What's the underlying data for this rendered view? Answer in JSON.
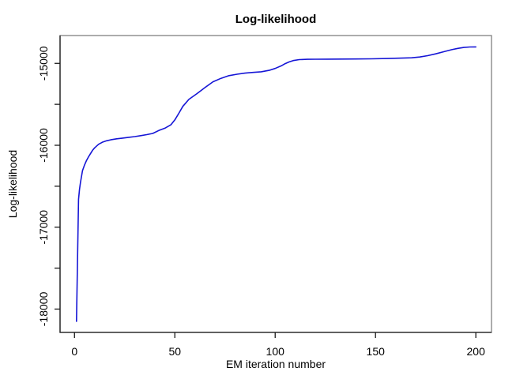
{
  "title": "Log-likelihood",
  "chart_data": {
    "type": "line",
    "title": "Log-likelihood",
    "xlabel": "EM iteration number",
    "ylabel": "Log-likelihood",
    "xlim": [
      -7.2,
      207.8
    ],
    "ylim": [
      -18285,
      -14660
    ],
    "grid": false,
    "legend_position": "none",
    "xticks": [
      {
        "v": 0,
        "label": "0"
      },
      {
        "v": 50,
        "label": "50"
      },
      {
        "v": 100,
        "label": "100"
      },
      {
        "v": 150,
        "label": "150"
      },
      {
        "v": 200,
        "label": "200"
      }
    ],
    "yticks": [
      {
        "v": -18000,
        "label": "-18000"
      },
      {
        "v": -17500,
        "label": ""
      },
      {
        "v": -17000,
        "label": "-17000"
      },
      {
        "v": -16500,
        "label": ""
      },
      {
        "v": -16000,
        "label": "-16000"
      },
      {
        "v": -15500,
        "label": ""
      },
      {
        "v": -15000,
        "label": "-15000"
      }
    ],
    "line_color": "#1515d6",
    "axis_color": "#1a1a1a",
    "box_color": "#808080",
    "series": [
      {
        "name": "log-likelihood",
        "x": [
          1,
          2,
          2.5,
          3,
          4,
          5,
          6,
          7,
          8,
          9,
          10,
          12,
          14,
          16,
          18,
          21,
          24,
          27,
          30,
          33,
          36,
          39,
          42,
          45,
          48,
          50,
          52,
          54,
          57,
          61,
          65,
          69,
          73,
          77,
          81,
          85,
          89,
          93,
          97,
          100,
          103,
          105,
          107,
          109,
          112,
          116,
          120,
          126,
          133,
          140,
          148,
          156,
          163,
          168,
          172,
          176,
          180,
          184,
          188,
          191,
          194,
          197,
          200
        ],
        "y": [
          -18150,
          -16660,
          -16540,
          -16450,
          -16310,
          -16240,
          -16185,
          -16140,
          -16100,
          -16062,
          -16032,
          -15988,
          -15962,
          -15945,
          -15934,
          -15921,
          -15912,
          -15903,
          -15894,
          -15882,
          -15870,
          -15855,
          -15820,
          -15792,
          -15750,
          -15690,
          -15610,
          -15525,
          -15440,
          -15370,
          -15295,
          -15225,
          -15183,
          -15150,
          -15132,
          -15119,
          -15110,
          -15103,
          -15085,
          -15062,
          -15030,
          -15003,
          -14982,
          -14966,
          -14954,
          -14950,
          -14949,
          -14948,
          -14947,
          -14946,
          -14944,
          -14941,
          -14936,
          -14932,
          -14922,
          -14906,
          -14884,
          -14858,
          -14833,
          -14817,
          -14806,
          -14800,
          -14799
        ]
      }
    ]
  }
}
